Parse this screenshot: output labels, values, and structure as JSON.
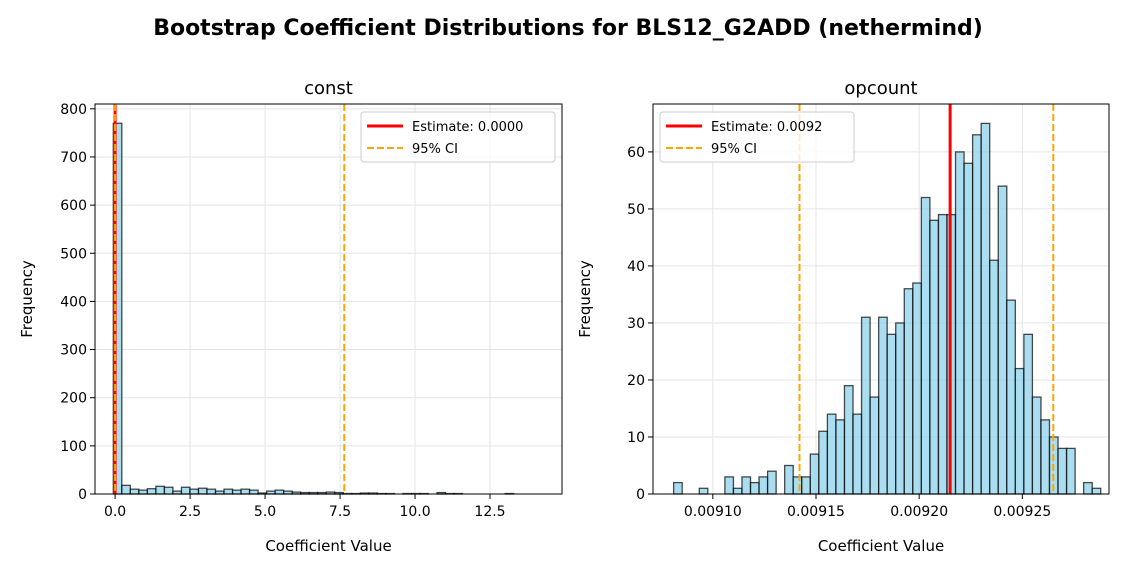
{
  "suptitle": "Bootstrap Coefficient Distributions for BLS12_G2ADD (nethermind)",
  "chart_data": [
    {
      "type": "bar",
      "title": "const",
      "xlabel": "Coefficient Value",
      "ylabel": "Frequency",
      "xlim": [
        -0.67,
        14.9
      ],
      "ylim": [
        0,
        810
      ],
      "xticks": [
        0,
        2.5,
        5,
        7.5,
        10,
        12.5
      ],
      "xtick_labels": [
        "0.0",
        "2.5",
        "5.0",
        "7.5",
        "10.0",
        "12.5"
      ],
      "yticks": [
        0,
        100,
        200,
        300,
        400,
        500,
        600,
        700,
        800
      ],
      "ytick_labels": [
        "0",
        "100",
        "200",
        "300",
        "400",
        "500",
        "600",
        "700",
        "800"
      ],
      "grid": true,
      "bin_start": -0.06,
      "bin_width": 0.284,
      "counts": [
        770,
        18,
        10,
        8,
        11,
        16,
        14,
        6,
        14,
        10,
        12,
        10,
        6,
        10,
        8,
        10,
        8,
        2,
        6,
        8,
        6,
        4,
        3,
        3,
        3,
        4,
        3,
        1,
        1,
        2,
        2,
        1,
        1,
        0,
        1,
        1,
        1,
        0,
        3,
        1,
        1,
        0,
        0,
        0,
        0,
        0,
        1,
        0,
        0,
        0
      ],
      "bar_color": "#87ceeb",
      "estimate": 0.0,
      "ci": [
        0.0,
        7.64
      ],
      "legend": {
        "placement": "upper right",
        "entries": [
          "Estimate: 0.0000",
          "95% CI"
        ]
      },
      "estimate_color": "#ff0000",
      "ci_color": "#ffa500"
    },
    {
      "type": "bar",
      "title": "opcount",
      "xlabel": "Coefficient Value",
      "ylabel": "Frequency",
      "xlim": [
        0.009071,
        0.009292
      ],
      "ylim": [
        0,
        68.4
      ],
      "xticks": [
        0.0091,
        0.00915,
        0.0092,
        0.00925
      ],
      "xtick_labels": [
        "0.00910",
        "0.00915",
        "0.00920",
        "0.00925"
      ],
      "yticks": [
        0,
        10,
        20,
        30,
        40,
        50,
        60
      ],
      "ytick_labels": [
        "0",
        "10",
        "20",
        "30",
        "40",
        "50",
        "60"
      ],
      "grid": true,
      "bin_start": 0.009081,
      "bin_width": 4.14e-06,
      "counts": [
        2,
        0,
        0,
        1,
        0,
        0,
        3,
        1,
        3,
        2,
        3,
        4,
        0,
        5,
        3,
        3,
        7,
        11,
        14,
        13,
        19,
        14,
        31,
        17,
        31,
        28,
        30,
        36,
        37,
        52,
        48,
        49,
        49,
        60,
        58,
        63,
        65,
        41,
        54,
        34,
        22,
        28,
        17,
        13,
        10,
        8,
        8,
        0,
        2,
        1
      ],
      "bar_color": "#87ceeb",
      "estimate": 0.009215,
      "ci": [
        0.009142,
        0.009265
      ],
      "legend": {
        "placement": "upper left",
        "entries": [
          "Estimate: 0.0092",
          "95% CI"
        ]
      },
      "estimate_color": "#ff0000",
      "ci_color": "#ffa500"
    }
  ]
}
